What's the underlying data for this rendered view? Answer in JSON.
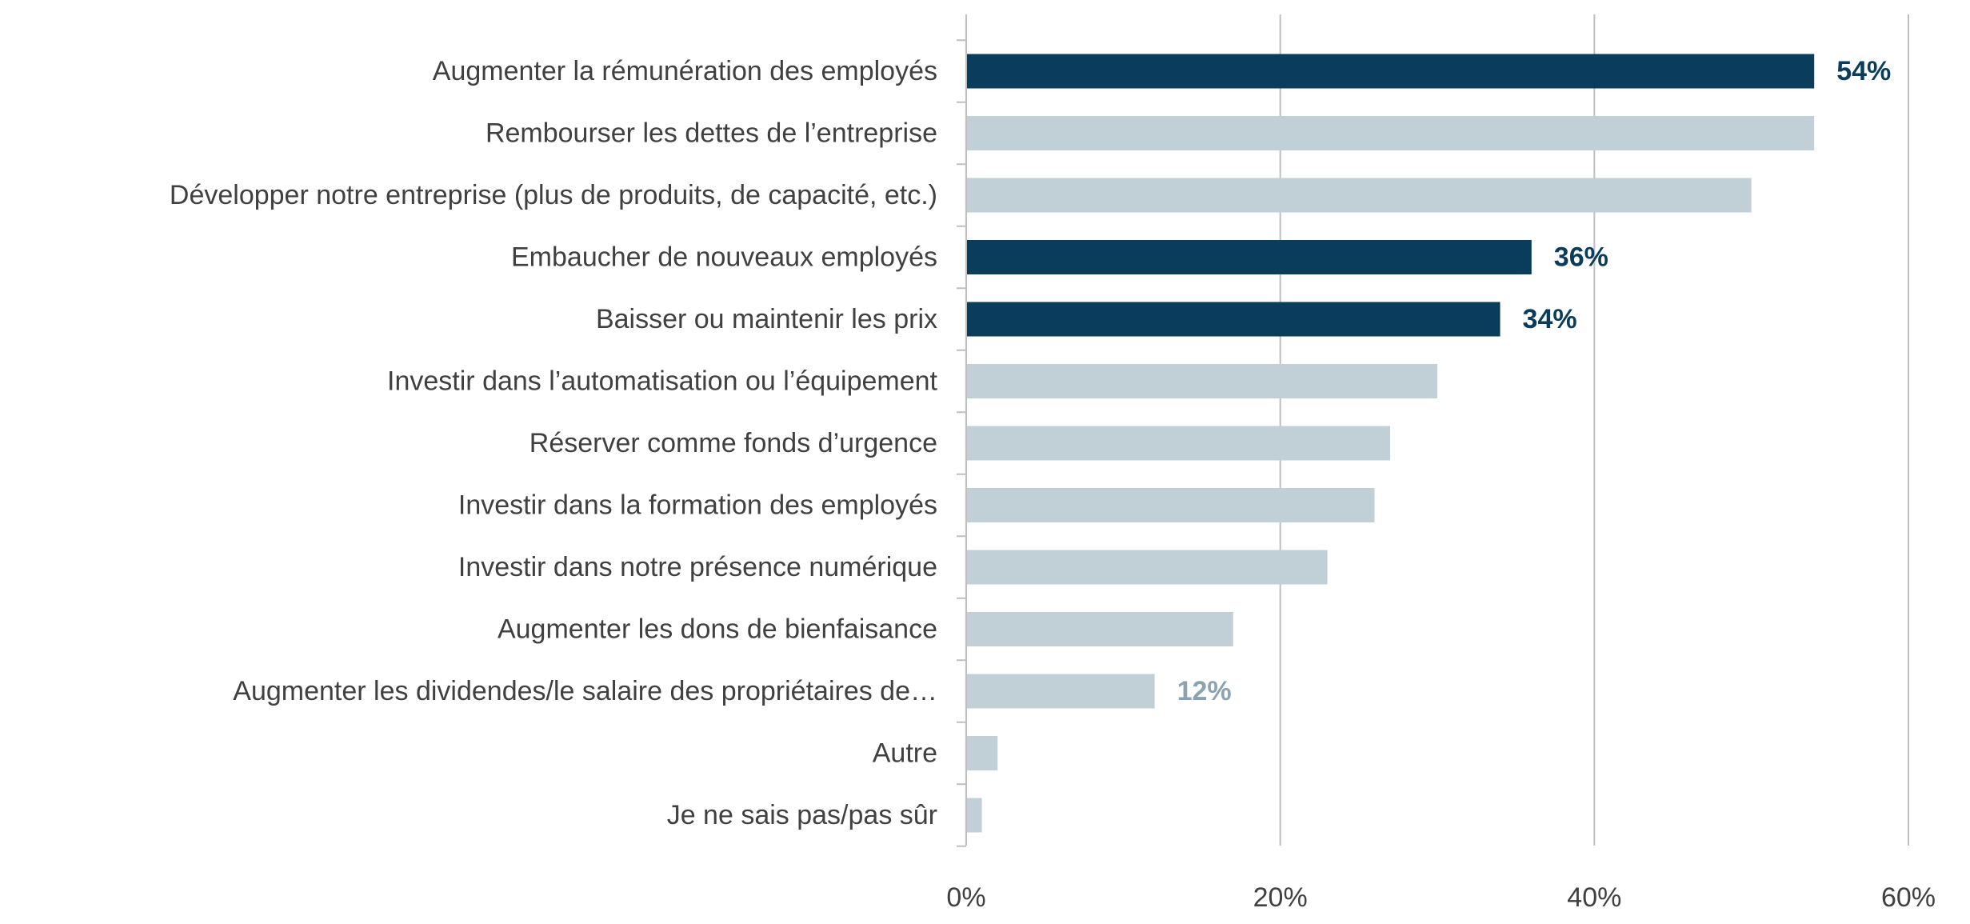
{
  "colors": {
    "highlight_bar": "#0a3d5c",
    "regular_bar": "#c1d0d7",
    "gridline": "#bfbfbf",
    "axis": "#bfbfbf",
    "label_text": "#404040",
    "highlight_label": "#0a3d5c",
    "regular_label": "#8aa2b2"
  },
  "chart_data": {
    "type": "bar",
    "orientation": "horizontal",
    "title": "",
    "xlabel": "",
    "ylabel": "",
    "categories": [
      "Augmenter la rémunération des employés",
      "Rembourser les dettes de l’entreprise",
      "Développer notre entreprise (plus de produits, de capacité, etc.)",
      "Embaucher de nouveaux employés",
      "Baisser ou maintenir les prix",
      "Investir dans l’automatisation ou l’équipement",
      "Réserver comme fonds d’urgence",
      "Investir dans la formation des employés",
      "Investir dans notre présence numérique",
      "Augmenter les dons de bienfaisance",
      "Augmenter les dividendes/le salaire des propriétaires de…",
      "Autre",
      "Je ne sais pas/pas sûr"
    ],
    "values": [
      54,
      54,
      50,
      36,
      34,
      30,
      27,
      26,
      23,
      17,
      12,
      2,
      1
    ],
    "highlighted": [
      true,
      false,
      false,
      true,
      true,
      false,
      false,
      false,
      false,
      false,
      false,
      false,
      false
    ],
    "data_labels": [
      "54%",
      "",
      "",
      "36%",
      "34%",
      "",
      "",
      "",
      "",
      "",
      "12%",
      "",
      ""
    ],
    "xlim": [
      0,
      60
    ],
    "x_ticks": [
      0,
      20,
      40,
      60
    ],
    "x_tick_labels": [
      "0%",
      "20%",
      "40%",
      "60%"
    ],
    "grid": true,
    "legend": "none"
  }
}
